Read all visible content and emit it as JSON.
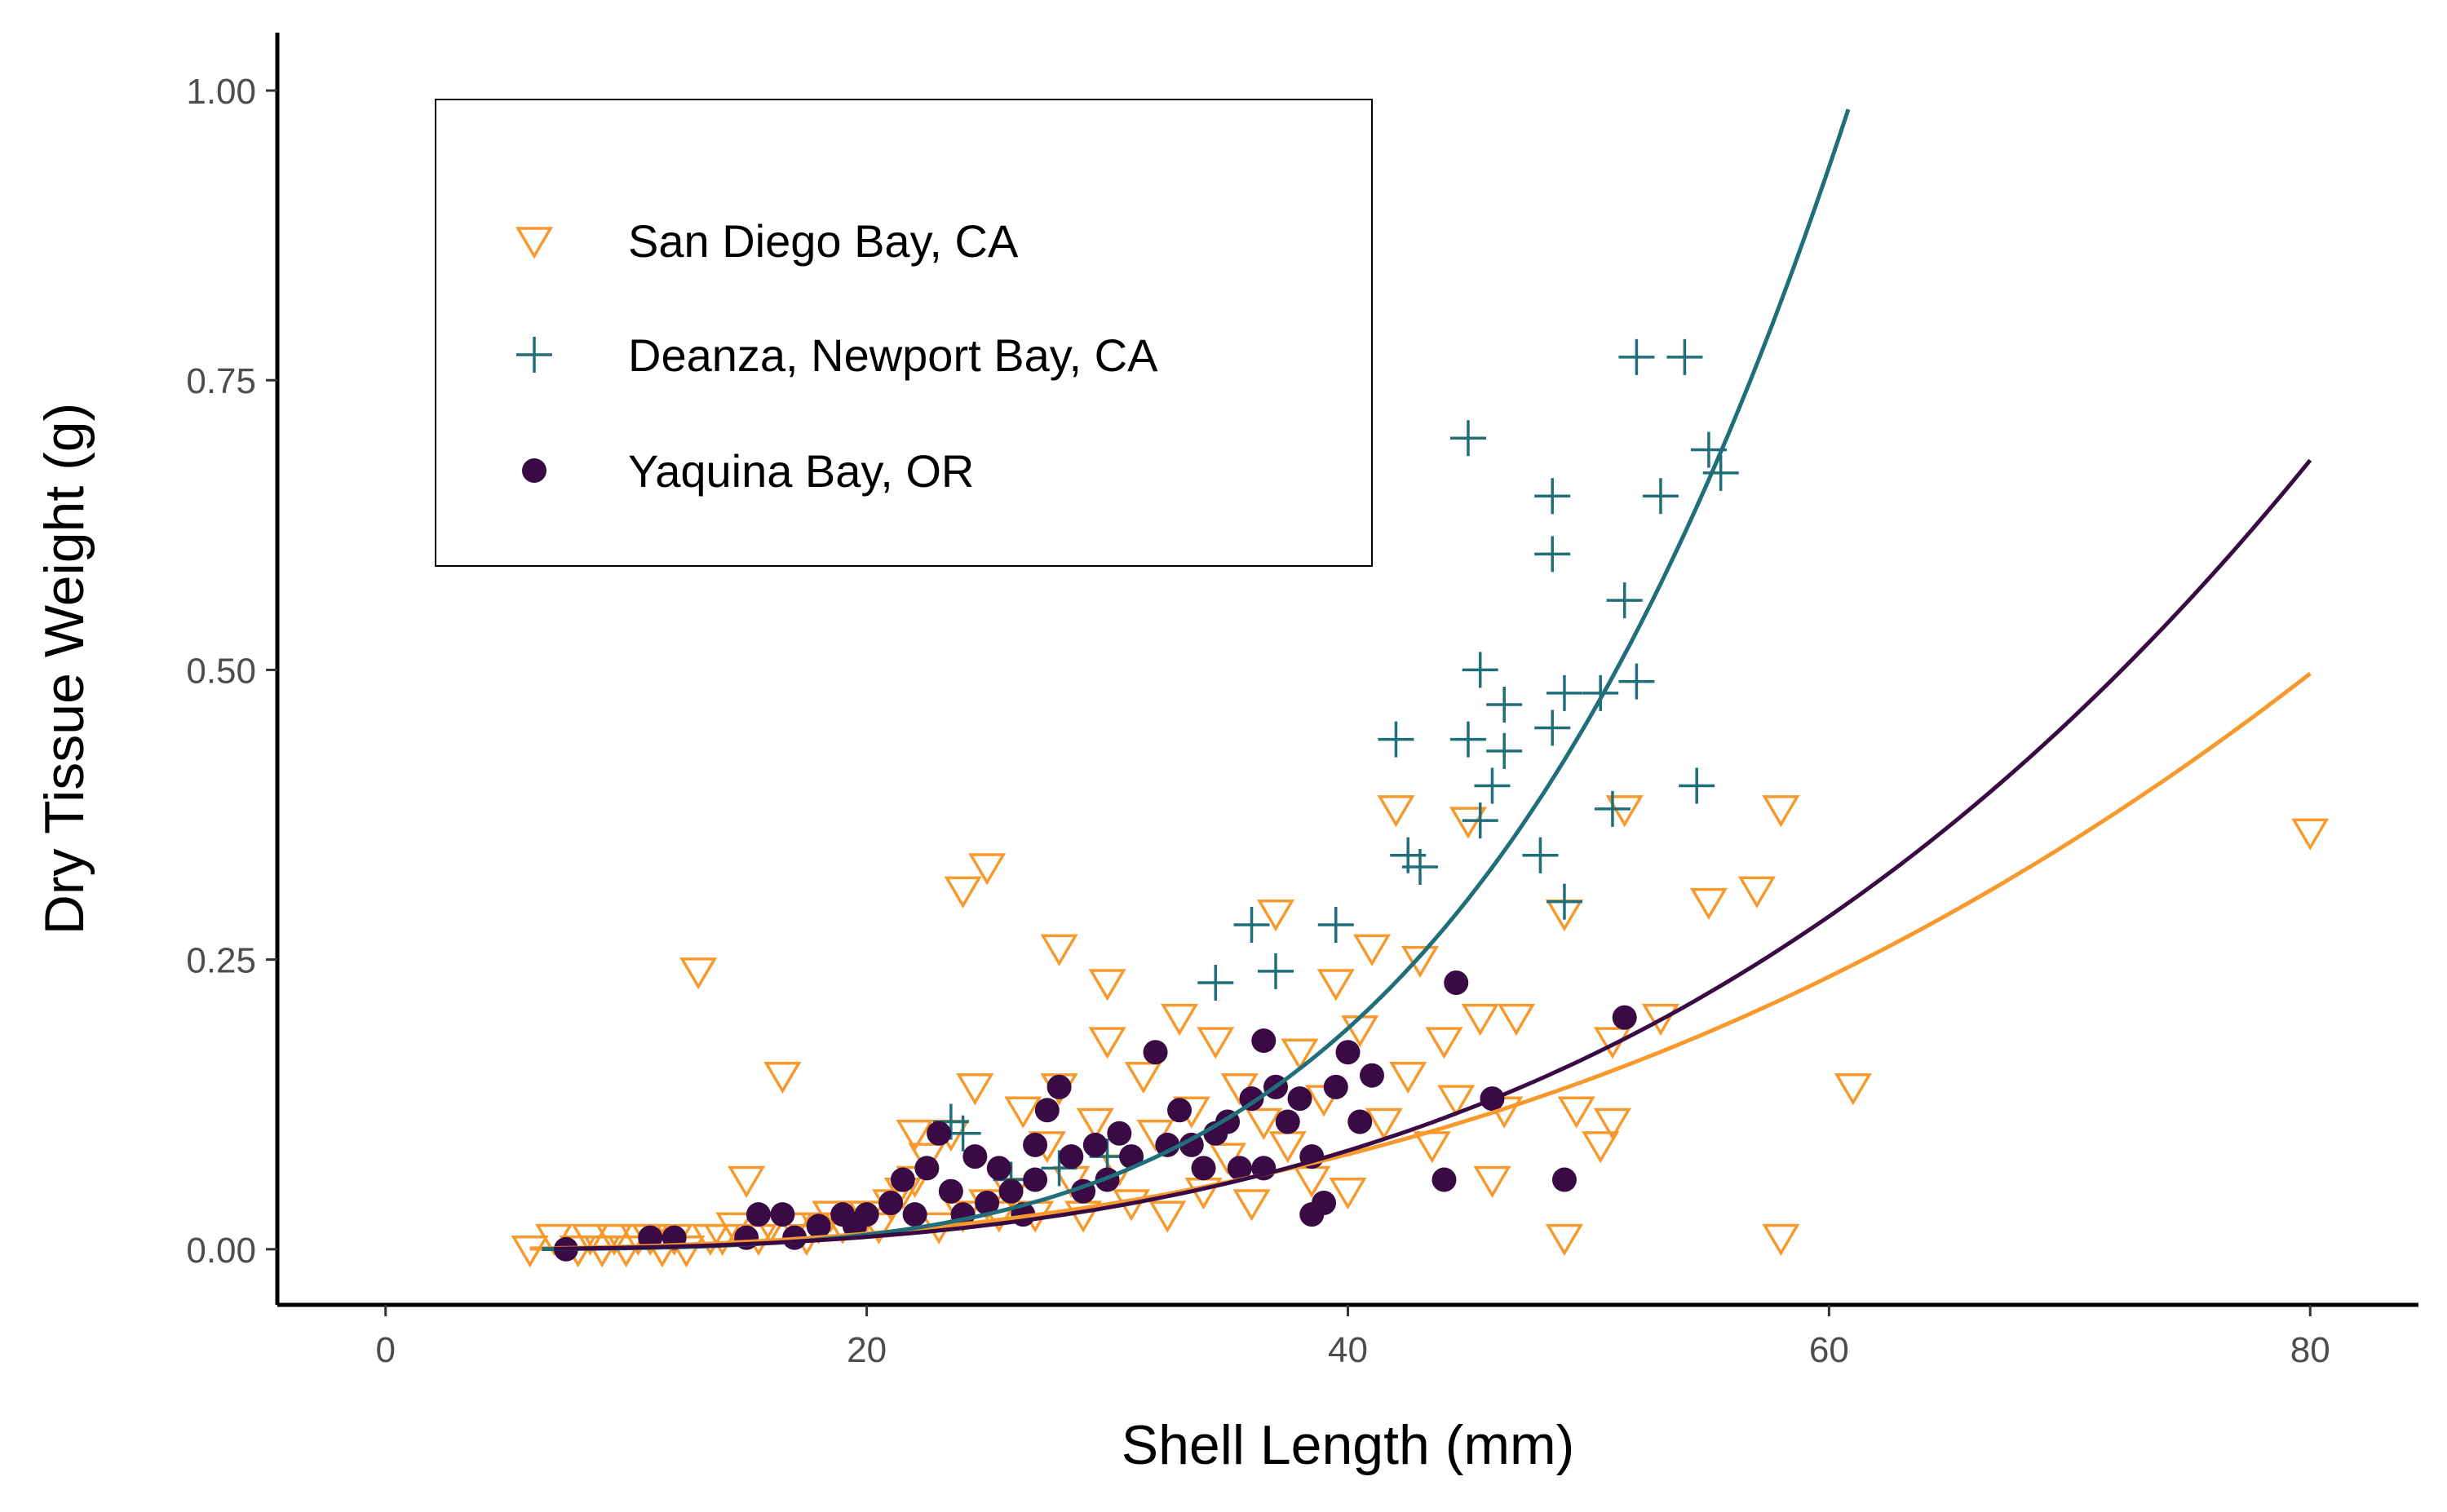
{
  "chart_data": {
    "type": "scatter",
    "title": "",
    "xlabel": "Shell Length (mm)",
    "ylabel": "Dry Tissue Weight (g)",
    "xlim": [
      -4.5,
      84.5
    ],
    "ylim": [
      -0.048,
      1.05
    ],
    "xticks": [
      0,
      20,
      40,
      60,
      80
    ],
    "xtick_labels": [
      "0",
      "20",
      "40",
      "60",
      "80"
    ],
    "yticks": [
      0,
      0.25,
      0.5,
      0.75,
      1.0
    ],
    "ytick_labels": [
      "0.00",
      "0.25",
      "0.50",
      "0.75",
      "1.00"
    ],
    "grid": false,
    "legend_position": "top-left",
    "series": [
      {
        "name": "San Diego Bay, CA",
        "marker": "triangle-down-open",
        "color": "#F7992C",
        "fit": {
          "a": 5.6e-06,
          "b": 2.6,
          "x_range": [
            6,
            80
          ]
        },
        "points": [
          [
            6,
            0.0
          ],
          [
            7,
            0.01
          ],
          [
            8,
            0.0
          ],
          [
            8.5,
            0.01
          ],
          [
            9,
            0.0
          ],
          [
            9.5,
            0.01
          ],
          [
            10,
            0.0
          ],
          [
            10.5,
            0.01
          ],
          [
            11,
            0.01
          ],
          [
            11.5,
            0.0
          ],
          [
            12,
            0.01
          ],
          [
            12.5,
            0.0
          ],
          [
            13,
            0.24
          ],
          [
            13.5,
            0.01
          ],
          [
            14,
            0.01
          ],
          [
            14.5,
            0.02
          ],
          [
            15,
            0.06
          ],
          [
            15.5,
            0.01
          ],
          [
            16,
            0.02
          ],
          [
            16.5,
            0.15
          ],
          [
            17,
            0.02
          ],
          [
            17.5,
            0.01
          ],
          [
            18,
            0.02
          ],
          [
            18.5,
            0.03
          ],
          [
            19,
            0.02
          ],
          [
            19.5,
            0.03
          ],
          [
            20,
            0.03
          ],
          [
            20.5,
            0.02
          ],
          [
            21,
            0.04
          ],
          [
            21.5,
            0.05
          ],
          [
            22,
            0.06
          ],
          [
            22.5,
            0.08
          ],
          [
            23,
            0.02
          ],
          [
            23.5,
            0.1
          ],
          [
            24,
            0.03
          ],
          [
            24.5,
            0.14
          ],
          [
            25,
            0.04
          ],
          [
            25.5,
            0.03
          ],
          [
            26,
            0.05
          ],
          [
            26.5,
            0.12
          ],
          [
            27,
            0.03
          ],
          [
            27.5,
            0.09
          ],
          [
            28,
            0.14
          ],
          [
            28.5,
            0.06
          ],
          [
            29,
            0.03
          ],
          [
            29.5,
            0.11
          ],
          [
            30,
            0.18
          ],
          [
            30.5,
            0.07
          ],
          [
            31,
            0.04
          ],
          [
            31.5,
            0.15
          ],
          [
            32,
            0.1
          ],
          [
            32.5,
            0.03
          ],
          [
            33,
            0.2
          ],
          [
            33.5,
            0.12
          ],
          [
            34,
            0.05
          ],
          [
            34.5,
            0.18
          ],
          [
            35,
            0.08
          ],
          [
            35.5,
            0.14
          ],
          [
            36,
            0.04
          ],
          [
            36.5,
            0.11
          ],
          [
            37,
            0.29
          ],
          [
            37.5,
            0.09
          ],
          [
            38,
            0.17
          ],
          [
            38.5,
            0.06
          ],
          [
            39,
            0.13
          ],
          [
            39.5,
            0.23
          ],
          [
            40,
            0.05
          ],
          [
            40.5,
            0.19
          ],
          [
            41,
            0.26
          ],
          [
            41.5,
            0.11
          ],
          [
            42,
            0.38
          ],
          [
            42.5,
            0.15
          ],
          [
            43,
            0.25
          ],
          [
            43.5,
            0.09
          ],
          [
            44,
            0.18
          ],
          [
            44.5,
            0.13
          ],
          [
            45,
            0.37
          ],
          [
            45.5,
            0.2
          ],
          [
            46,
            0.06
          ],
          [
            46.5,
            0.12
          ],
          [
            47,
            0.2
          ],
          [
            49,
            0.29
          ],
          [
            49,
            0.01
          ],
          [
            49.5,
            0.12
          ],
          [
            50.5,
            0.09
          ],
          [
            51,
            0.18
          ],
          [
            51,
            0.11
          ],
          [
            51.5,
            0.38
          ],
          [
            53,
            0.2
          ],
          [
            55,
            0.3
          ],
          [
            57,
            0.31
          ],
          [
            58,
            0.01
          ],
          [
            58,
            0.38
          ],
          [
            61,
            0.14
          ],
          [
            80,
            0.36
          ],
          [
            24,
            0.31
          ],
          [
            25,
            0.33
          ],
          [
            28,
            0.26
          ],
          [
            30,
            0.23
          ],
          [
            22,
            0.1
          ]
        ]
      },
      {
        "name": "Deanza, Newport Bay, CA",
        "marker": "plus",
        "color": "#1F6E79",
        "fit": {
          "a": 1e-07,
          "b": 3.92,
          "x_range": [
            6.5,
            60.8
          ]
        },
        "points": [
          [
            23.5,
            0.11
          ],
          [
            24,
            0.1
          ],
          [
            26,
            0.06
          ],
          [
            28,
            0.07
          ],
          [
            30,
            0.08
          ],
          [
            34.5,
            0.23
          ],
          [
            36,
            0.28
          ],
          [
            37,
            0.24
          ],
          [
            39.5,
            0.28
          ],
          [
            42,
            0.44
          ],
          [
            42.5,
            0.34
          ],
          [
            43,
            0.33
          ],
          [
            45,
            0.44
          ],
          [
            45,
            0.7
          ],
          [
            45.5,
            0.5
          ],
          [
            45.5,
            0.37
          ],
          [
            46,
            0.4
          ],
          [
            46.5,
            0.43
          ],
          [
            46.5,
            0.47
          ],
          [
            48,
            0.34
          ],
          [
            48.5,
            0.6
          ],
          [
            48.5,
            0.45
          ],
          [
            48.5,
            0.65
          ],
          [
            49,
            0.3
          ],
          [
            49,
            0.48
          ],
          [
            50.5,
            0.48
          ],
          [
            51,
            0.38
          ],
          [
            51.5,
            0.56
          ],
          [
            52,
            0.49
          ],
          [
            52,
            0.77
          ],
          [
            53,
            0.65
          ],
          [
            54,
            0.77
          ],
          [
            54.5,
            0.4
          ],
          [
            55,
            0.69
          ],
          [
            55.5,
            0.67
          ]
        ]
      },
      {
        "name": "Yaquina Bay, OR",
        "marker": "circle-filled",
        "color": "#3A0A45",
        "fit": {
          "a": 1.33e-06,
          "b": 3.0,
          "x_range": [
            7,
            80
          ]
        },
        "points": [
          [
            7.5,
            0.0
          ],
          [
            11,
            0.01
          ],
          [
            12,
            0.01
          ],
          [
            15,
            0.01
          ],
          [
            15.5,
            0.03
          ],
          [
            16.5,
            0.03
          ],
          [
            17,
            0.01
          ],
          [
            18,
            0.02
          ],
          [
            19,
            0.03
          ],
          [
            19.5,
            0.02
          ],
          [
            20,
            0.03
          ],
          [
            21,
            0.04
          ],
          [
            21.5,
            0.06
          ],
          [
            22,
            0.03
          ],
          [
            22.5,
            0.07
          ],
          [
            23,
            0.1
          ],
          [
            23.5,
            0.05
          ],
          [
            24,
            0.03
          ],
          [
            24.5,
            0.08
          ],
          [
            25,
            0.04
          ],
          [
            25.5,
            0.07
          ],
          [
            26,
            0.05
          ],
          [
            26.5,
            0.03
          ],
          [
            27,
            0.09
          ],
          [
            27,
            0.06
          ],
          [
            27.5,
            0.12
          ],
          [
            28,
            0.14
          ],
          [
            28.5,
            0.08
          ],
          [
            29,
            0.05
          ],
          [
            29.5,
            0.09
          ],
          [
            30,
            0.06
          ],
          [
            30.5,
            0.1
          ],
          [
            31,
            0.08
          ],
          [
            32,
            0.17
          ],
          [
            32.5,
            0.09
          ],
          [
            33,
            0.12
          ],
          [
            33.5,
            0.09
          ],
          [
            34,
            0.07
          ],
          [
            34.5,
            0.1
          ],
          [
            35,
            0.11
          ],
          [
            35.5,
            0.07
          ],
          [
            36,
            0.13
          ],
          [
            36.5,
            0.18
          ],
          [
            37,
            0.14
          ],
          [
            37.5,
            0.11
          ],
          [
            38,
            0.13
          ],
          [
            38.5,
            0.08
          ],
          [
            39,
            0.04
          ],
          [
            39.5,
            0.14
          ],
          [
            40,
            0.17
          ],
          [
            40.5,
            0.11
          ],
          [
            41,
            0.15
          ],
          [
            44,
            0.06
          ],
          [
            44.5,
            0.23
          ],
          [
            46,
            0.13
          ],
          [
            49,
            0.06
          ],
          [
            51.5,
            0.2
          ],
          [
            36.5,
            0.07
          ],
          [
            38.5,
            0.03
          ]
        ]
      }
    ]
  }
}
